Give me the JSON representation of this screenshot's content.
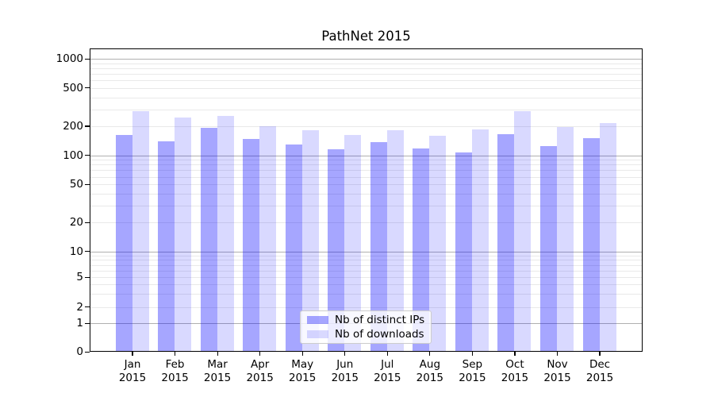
{
  "chart_data": {
    "type": "bar",
    "title": "PathNet 2015",
    "categories": [
      "Jan",
      "Feb",
      "Mar",
      "Apr",
      "May",
      "Jun",
      "Jul",
      "Aug",
      "Sep",
      "Oct",
      "Nov",
      "Dec"
    ],
    "x_year_label": "2015",
    "series": [
      {
        "name": "Nb of distinct IPs",
        "color": "rgba(0,0,255,0.35)",
        "values": [
          162,
          139,
          194,
          148,
          129,
          116,
          136,
          118,
          108,
          167,
          125,
          152
        ]
      },
      {
        "name": "Nb of downloads",
        "color": "rgba(0,0,255,0.15)",
        "values": [
          290,
          247,
          255,
          200,
          181,
          164,
          181,
          160,
          185,
          286,
          198,
          217
        ]
      }
    ],
    "yscale": "symlog",
    "ylim": [
      0,
      1000
    ],
    "yticks": [
      0,
      1,
      2,
      5,
      10,
      20,
      50,
      100,
      200,
      500,
      1000
    ],
    "grid": true,
    "grid_major_values": [
      1,
      10,
      100,
      1000
    ],
    "grid_minor_decades": [
      1,
      10,
      100
    ],
    "legend_position": "lower center",
    "colors": {
      "grid_major": "#b0b0b0",
      "grid_minor": "#e9e9e9",
      "spine": "#000000",
      "background": "#ffffff"
    }
  }
}
